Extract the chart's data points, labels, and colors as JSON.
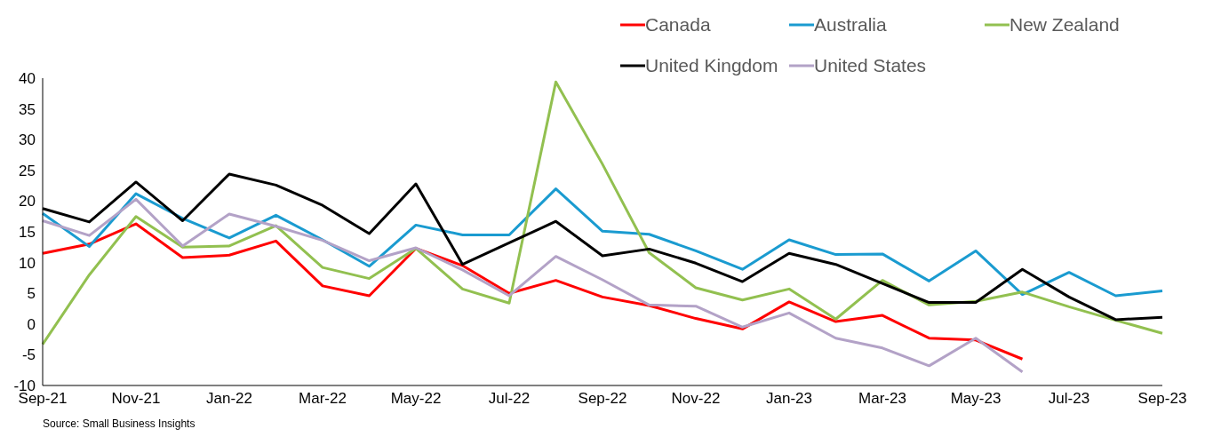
{
  "chart_data": {
    "type": "line",
    "categories": [
      "Sep-21",
      null,
      "Nov-21",
      null,
      "Jan-22",
      null,
      "Mar-22",
      null,
      "May-22",
      null,
      "Jul-22",
      null,
      "Sep-22",
      null,
      "Nov-22",
      null,
      "Jan-23",
      null,
      "Mar-23",
      null,
      "May-23",
      null,
      "Jul-23",
      null,
      "Sep-23"
    ],
    "series": [
      {
        "name": "Canada",
        "color": "#ff0000",
        "values": [
          11.5,
          13,
          16.3,
          10.8,
          11.2,
          13.5,
          6.2,
          4.6,
          12.3,
          9.5,
          5,
          7.1,
          4.4,
          3,
          0.9,
          -0.8,
          3.6,
          0.4,
          1.4,
          -2.3,
          -2.6,
          -5.7,
          null,
          null,
          null
        ]
      },
      {
        "name": "Australia",
        "color": "#1a9bd0",
        "values": [
          18,
          12.6,
          21.2,
          17.2,
          14,
          17.7,
          13.7,
          9.4,
          16.1,
          14.5,
          14.5,
          22,
          15.1,
          14.6,
          11.9,
          8.9,
          13.7,
          11.3,
          11.4,
          7,
          11.9,
          4.8,
          8.4,
          4.6,
          5.4
        ]
      },
      {
        "name": "New Zealand",
        "color": "#92c050",
        "values": [
          -3.3,
          8,
          17.5,
          12.5,
          12.7,
          16,
          9.2,
          7.4,
          12.3,
          5.7,
          3.4,
          39.4,
          26,
          11.6,
          5.9,
          3.9,
          5.7,
          0.8,
          7.1,
          3.1,
          3.7,
          5.2,
          2.8,
          0.6,
          -1.5
        ]
      },
      {
        "name": "United Kingdom",
        "color": "#000000",
        "values": [
          18.8,
          16.6,
          23.1,
          16.8,
          24.4,
          22.6,
          19.3,
          14.7,
          22.8,
          9.7,
          13.2,
          16.7,
          11.1,
          12.2,
          9.9,
          6.9,
          11.5,
          9.7,
          6.6,
          3.5,
          3.5,
          8.9,
          4.4,
          0.7,
          1.1
        ]
      },
      {
        "name": "United States",
        "color": "#b3a2c7",
        "values": [
          16.8,
          14.4,
          20.3,
          12.7,
          17.9,
          15.9,
          13.6,
          10.3,
          12.4,
          8.8,
          4.6,
          11,
          7.2,
          3.1,
          2.9,
          -0.5,
          1.8,
          -2.3,
          -3.9,
          -6.8,
          -2.3,
          -7.8,
          null,
          null,
          null
        ]
      }
    ],
    "ylim": [
      -10,
      40
    ],
    "yticks": [
      -10,
      -5,
      0,
      5,
      10,
      15,
      20,
      25,
      30,
      35,
      40
    ],
    "grid": false,
    "legend": "top right",
    "marker": "none",
    "line_style": "solid",
    "annotations": [
      "Source: Small Business Insights"
    ]
  }
}
